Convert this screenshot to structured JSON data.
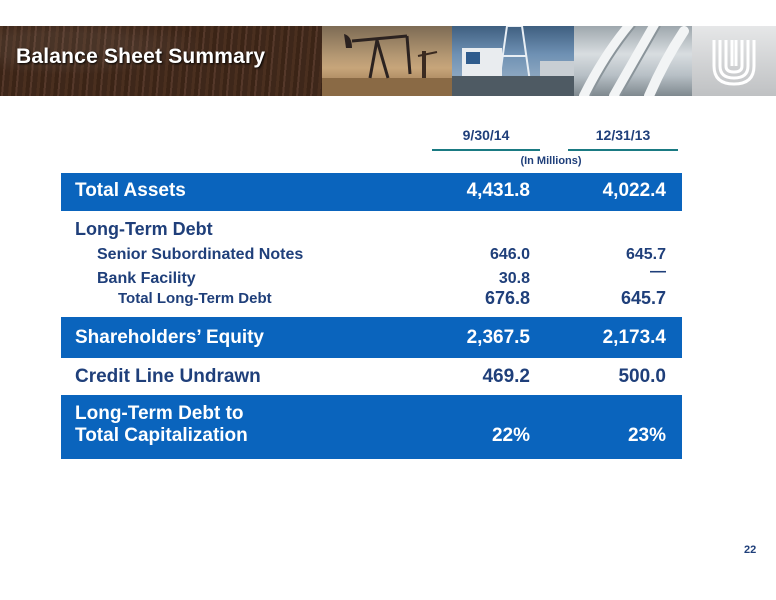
{
  "header": {
    "title": "Balance Sheet Summary",
    "logo_icon": "company-logo-icon"
  },
  "columns": {
    "col1": "9/30/14",
    "col2": "12/31/13",
    "units": "(In Millions)"
  },
  "rows": {
    "total_assets": {
      "label": "Total Assets",
      "v1": "4,431.8",
      "v2": "4,022.4"
    },
    "long_term_debt": {
      "label": "Long-Term Debt",
      "senior_notes": {
        "label": "Senior Subordinated Notes",
        "v1": "646.0",
        "v2": "645.7"
      },
      "bank_facility": {
        "label": "Bank Facility",
        "v1": "30.8",
        "v2": "—"
      },
      "total": {
        "label": "Total Long-Term Debt",
        "v1": "676.8",
        "v2": "645.7"
      }
    },
    "shareholders_equity": {
      "label": "Shareholders’ Equity",
      "v1": "2,367.5",
      "v2": "2,173.4"
    },
    "credit_line": {
      "label": "Credit Line Undrawn",
      "v1": "469.2",
      "v2": "500.0"
    },
    "debt_to_cap": {
      "label_line1": "Long-Term Debt to",
      "label_line2": "Total Capitalization",
      "v1": "22%",
      "v2": "23%"
    }
  },
  "footer": {
    "page_number": "22"
  },
  "colors": {
    "accent_blue": "#0a64bd",
    "text_navy": "#1f3f7a",
    "teal_rule": "#1a7a82"
  }
}
